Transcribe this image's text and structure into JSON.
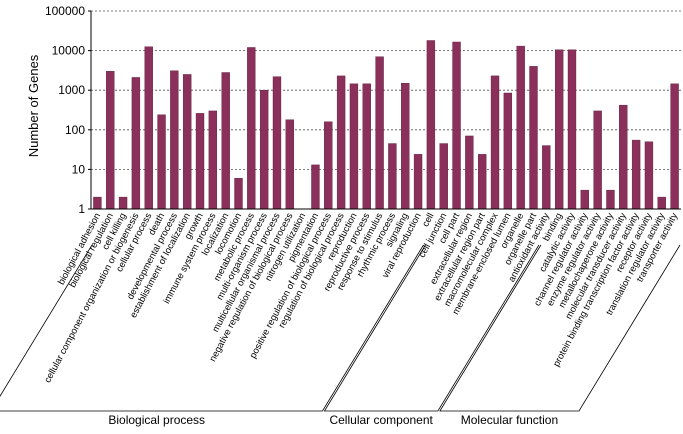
{
  "chart_data": {
    "type": "bar",
    "ylabel": "Number of Genes",
    "xlabel": "",
    "yscale": "log",
    "ylim": [
      1,
      100000
    ],
    "yticks": [
      "1",
      "10",
      "100",
      "1000",
      "10000",
      "100000"
    ],
    "bar_color": "#8b2f5b",
    "grid": "horizontal dashed",
    "categories": [
      "biological adhesion",
      "biological regulation",
      "cell killing",
      "cellular component organization or biogenesis",
      "cellular process",
      "death",
      "developmental process",
      "establishment of localization",
      "growth",
      "immune system process",
      "localization",
      "locomotion",
      "metabolic process",
      "multi-organism process",
      "multicellular organismal process",
      "negative regulation of biological process",
      "nitrogen utilization",
      "pigmentation",
      "positive regulation of biological process",
      "regulation of biological process",
      "reproduction",
      "reproductive process",
      "response to stimulus",
      "rhythmic process",
      "signaling",
      "viral reproduction",
      "cell",
      "cell junction",
      "cell part",
      "extracellular region",
      "extracellular region part",
      "macromolecular complex",
      "membrane-enclosed lumen",
      "organelle",
      "organelle part",
      "antioxidant activity",
      "binding",
      "catalytic activity",
      "channel regulator activity",
      "enzyme regulator activity",
      "metallochaperone activity",
      "molecular transducer activity",
      "protein binding transcription factor activity",
      "receptor activity",
      "translation regulator activity",
      "transporter activity"
    ],
    "values": [
      2,
      3000,
      2,
      2100,
      12500,
      240,
      3100,
      2500,
      260,
      300,
      2800,
      6,
      12000,
      1000,
      2200,
      180,
      1,
      13,
      160,
      2300,
      1450,
      1450,
      7000,
      45,
      1500,
      24,
      18000,
      45,
      16500,
      70,
      24,
      2300,
      850,
      13000,
      4000,
      40,
      10500,
      10500,
      3,
      300,
      3,
      420,
      55,
      50,
      2,
      1450
    ],
    "groups": [
      {
        "name": "Biological process",
        "start": 0,
        "end": 25
      },
      {
        "name": "Cellular component",
        "start": 26,
        "end": 34
      },
      {
        "name": "Molecular function",
        "start": 35,
        "end": 45
      }
    ]
  }
}
